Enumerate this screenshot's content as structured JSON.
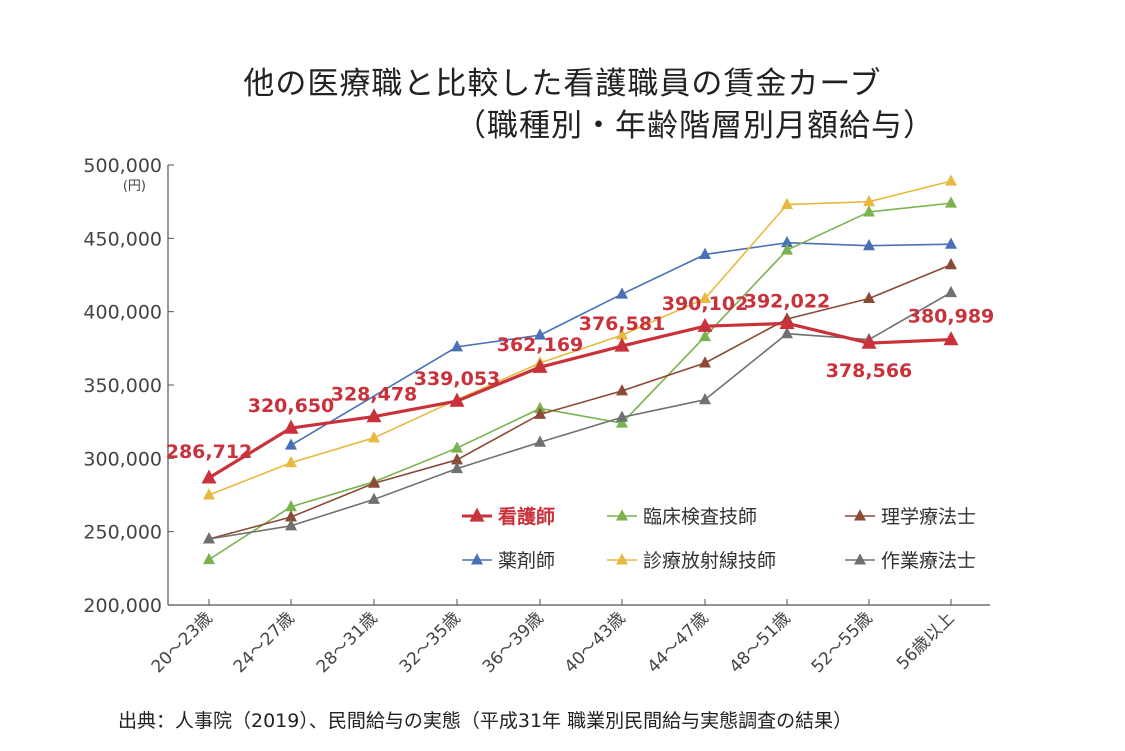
{
  "title": "他の医療職と比較した看護職員の賃金カーブ",
  "subtitle": "（職種別・年齢階層別月額給与）",
  "source": "出典：人事院（2019）、民間給与の実態（平成31年 職業別民間給与実態調査の結果）",
  "chart_data": {
    "type": "line",
    "title": "他の医療職と比較した看護職員の賃金カーブ",
    "subtitle": "（職種別・年齢階層別月額給与）",
    "ylabel": "(円)",
    "ylim": [
      200000,
      500000
    ],
    "yticks": [
      "500,000",
      "450,000",
      "400,000",
      "350,000",
      "300,000",
      "250,000",
      "200,000"
    ],
    "ytick_values": [
      500000,
      450000,
      400000,
      350000,
      300000,
      250000,
      200000
    ],
    "categories": [
      "20～23歳",
      "24～27歳",
      "28～31歳",
      "32～35歳",
      "36～39歳",
      "40～43歳",
      "44～47歳",
      "48～51歳",
      "52～55歳",
      "56歳以上"
    ],
    "grid": false,
    "legend_position": "bottom-right",
    "series": [
      {
        "name": "看護師",
        "color": "#c9323a",
        "highlight": true,
        "values": [
          286712,
          320650,
          328478,
          339053,
          362169,
          376581,
          390102,
          392022,
          378566,
          380989
        ]
      },
      {
        "name": "薬剤師",
        "color": "#4a70b5",
        "values": [
          null,
          309000,
          null,
          376000,
          384000,
          412000,
          439000,
          447000,
          445000,
          446000
        ]
      },
      {
        "name": "臨床検査技師",
        "color": "#7bb24e",
        "values": [
          231000,
          267000,
          284000,
          307000,
          334000,
          324000,
          383000,
          442000,
          468000,
          474000
        ]
      },
      {
        "name": "診療放射線技師",
        "color": "#e8b940",
        "values": [
          275000,
          297000,
          314000,
          340000,
          365000,
          384000,
          409000,
          473000,
          475000,
          489000
        ]
      },
      {
        "name": "理学療法士",
        "color": "#8a4a35",
        "values": [
          245000,
          260000,
          283000,
          299000,
          330000,
          346000,
          365000,
          395000,
          409000,
          432000
        ]
      },
      {
        "name": "作業療法士",
        "color": "#707070",
        "values": [
          245000,
          254000,
          272000,
          293000,
          311000,
          328000,
          340000,
          385000,
          381000,
          413000
        ]
      }
    ],
    "data_labels": [
      "286,712",
      "320,650",
      "328,478",
      "339,053",
      "362,169",
      "376,581",
      "390,102",
      "392,022",
      "378,566",
      "380,989"
    ]
  }
}
